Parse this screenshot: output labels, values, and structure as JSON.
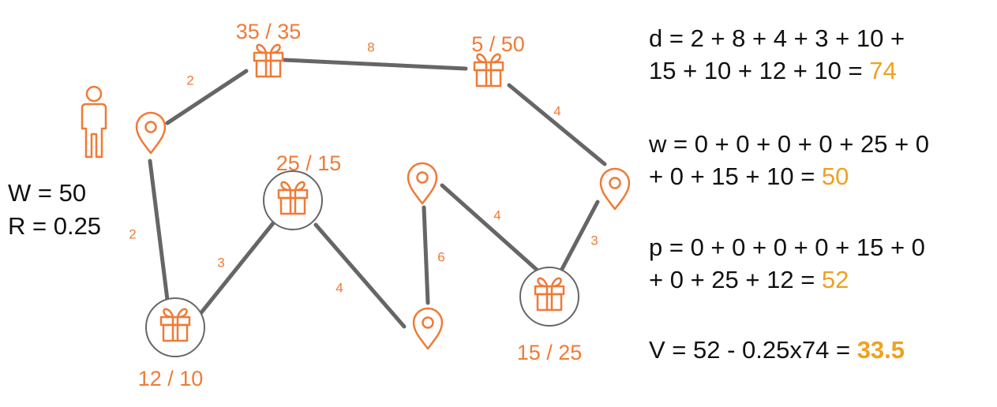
{
  "colors": {
    "accent": "#F07A35",
    "edge": "#666666",
    "highlight": "#F0A020",
    "text": "#111111"
  },
  "params": {
    "w_line": "W = 50",
    "r_line": "R = 0.25"
  },
  "nodes": [
    {
      "id": "start",
      "type": "location"
    },
    {
      "id": "g1",
      "type": "gift",
      "label": "35 / 35",
      "circled": false
    },
    {
      "id": "g2",
      "type": "gift",
      "label": "5 / 50",
      "circled": false
    },
    {
      "id": "p2",
      "type": "location"
    },
    {
      "id": "g3",
      "type": "gift",
      "label": "15 / 25",
      "circled": true
    },
    {
      "id": "p3",
      "type": "location"
    },
    {
      "id": "p4",
      "type": "location"
    },
    {
      "id": "g4",
      "type": "gift",
      "label": "25 / 15",
      "circled": true
    },
    {
      "id": "g5",
      "type": "gift",
      "label": "12 / 10",
      "circled": true
    }
  ],
  "edges": [
    {
      "from": "start",
      "to": "g1",
      "weight": "2"
    },
    {
      "from": "g1",
      "to": "g2",
      "weight": "8"
    },
    {
      "from": "g2",
      "to": "p2",
      "weight": "4"
    },
    {
      "from": "p2",
      "to": "g3",
      "weight": "3"
    },
    {
      "from": "g3",
      "to": "p3",
      "weight": "4"
    },
    {
      "from": "p3",
      "to": "p4",
      "weight": "6"
    },
    {
      "from": "p4",
      "to": "g4",
      "weight": "4"
    },
    {
      "from": "g4",
      "to": "g5",
      "weight": "3"
    },
    {
      "from": "g5",
      "to": "start",
      "weight": "2"
    }
  ],
  "formulas": {
    "d": {
      "line1": "d = 2 + 8 + 4 + 3 + 10 +",
      "line2": "15 + 10 + 12 + 10 = ",
      "result": "74"
    },
    "w": {
      "line1": "w = 0 + 0 + 0 + 0 + 25 + 0",
      "line2": "+ 0 + 15 + 10 = ",
      "result": "50"
    },
    "p": {
      "line1": "p = 0 + 0 + 0 + 0 + 15 + 0",
      "line2": "+ 0 + 25 + 12 = ",
      "result": "52"
    },
    "v": {
      "line1": "V = 52 - 0.25x74 = ",
      "result": "33.5"
    }
  }
}
